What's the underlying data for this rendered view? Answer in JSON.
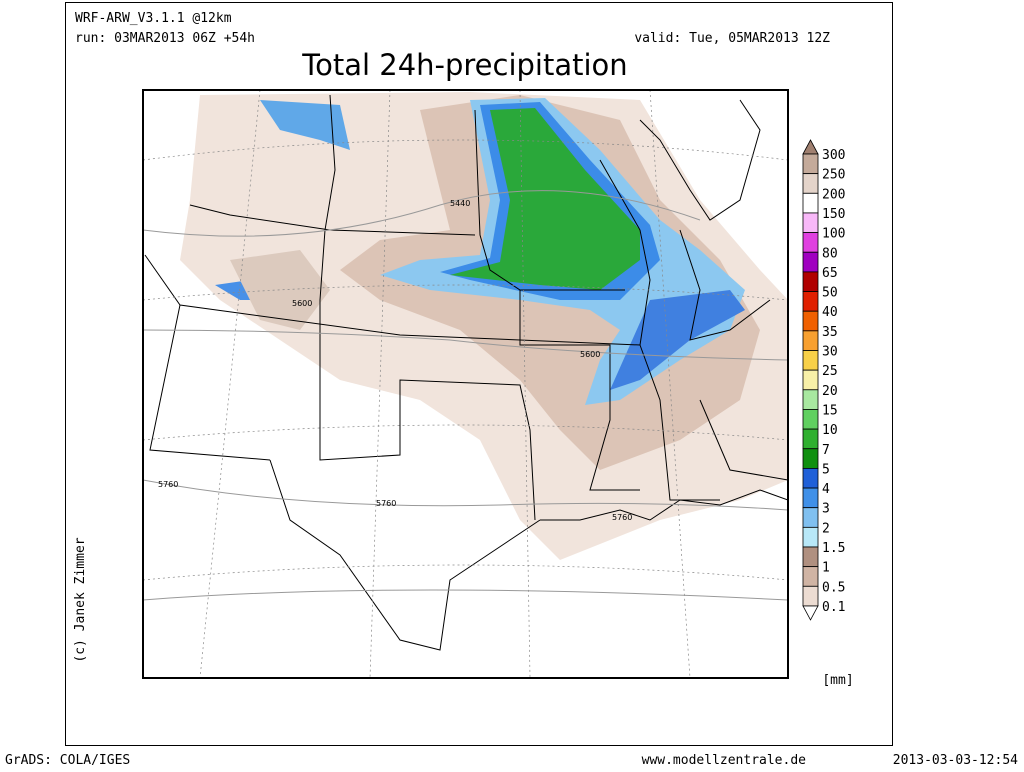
{
  "header": {
    "model": "WRF-ARW_V3.1.1 @12km",
    "run": "run: 03MAR2013 06Z +54h",
    "valid": "valid: Tue, 05MAR2013 12Z",
    "title": "Total 24h-precipitation"
  },
  "map": {
    "contour_labels": [
      "5440",
      "5600",
      "5600",
      "5760",
      "5760",
      "5760"
    ]
  },
  "legend": {
    "labels": [
      "300",
      "250",
      "200",
      "150",
      "100",
      "80",
      "65",
      "50",
      "40",
      "35",
      "30",
      "25",
      "20",
      "15",
      "10",
      "7",
      "5",
      "4",
      "3",
      "2",
      "1.5",
      "1",
      "0.5",
      "0.1"
    ],
    "colors": [
      "#a08070",
      "#c4aa9a",
      "#e4d4ca",
      "#ffffff",
      "#f8b8f8",
      "#e040e0",
      "#a000c0",
      "#b00000",
      "#e02000",
      "#f06000",
      "#f8a030",
      "#f8d048",
      "#f8f0a8",
      "#a8e8a0",
      "#60d060",
      "#30b030",
      "#109010",
      "#2060d8",
      "#4090e8",
      "#80c0f0",
      "#b8e8f8",
      "#b09080",
      "#d0b4a4",
      "#ecdcd2",
      "#ffffff"
    ],
    "unit": "[mm]"
  },
  "credit": "(c) Janek Zimmer",
  "footer": {
    "software": "GrADS: COLA/IGES",
    "website": "www.modellzentrale.de",
    "timestamp": "2013-03-03-12:54"
  }
}
